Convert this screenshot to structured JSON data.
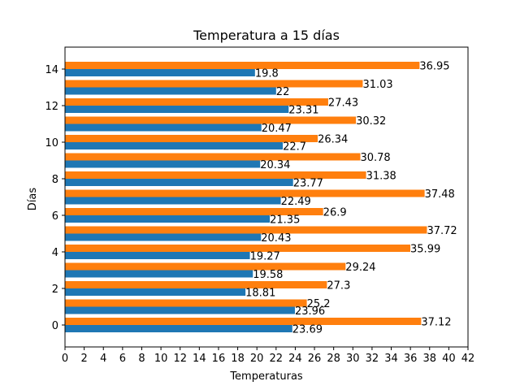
{
  "chart_data": {
    "type": "bar",
    "orientation": "horizontal",
    "title": "Temperatura a 15 días",
    "xlabel": "Temperaturas",
    "ylabel": "Días",
    "categories": [
      0,
      1,
      2,
      3,
      4,
      5,
      6,
      7,
      8,
      9,
      10,
      11,
      12,
      13,
      14
    ],
    "series": [
      {
        "color": "#1f77b4",
        "values": [
          23.69,
          23.96,
          18.81,
          19.58,
          19.27,
          20.43,
          21.35,
          22.49,
          23.77,
          20.34,
          22.7,
          20.47,
          23.31,
          22,
          19.8
        ]
      },
      {
        "color": "#ff7f0e",
        "values": [
          37.12,
          25.2,
          27.3,
          29.24,
          35.99,
          37.72,
          26.9,
          37.48,
          31.38,
          30.78,
          26.34,
          30.32,
          27.43,
          31.03,
          36.95
        ]
      }
    ],
    "xlim": [
      0,
      42
    ],
    "ylim": [
      -1.2,
      15.2
    ],
    "xticks": [
      0,
      2,
      4,
      6,
      8,
      10,
      12,
      14,
      16,
      18,
      20,
      22,
      24,
      26,
      28,
      30,
      32,
      34,
      36,
      38,
      40,
      42
    ],
    "yticks": [
      0,
      2,
      4,
      6,
      8,
      10,
      12,
      14
    ],
    "grid": false,
    "legend": "none"
  }
}
